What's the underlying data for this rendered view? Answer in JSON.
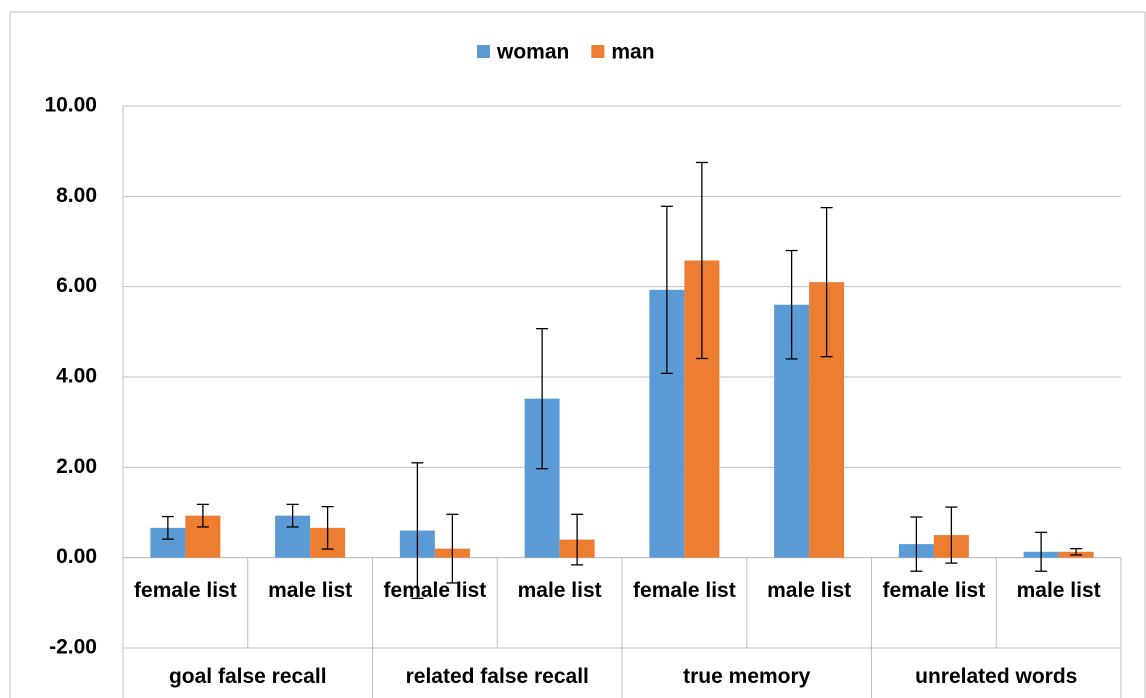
{
  "chart_data": {
    "type": "bar",
    "categories": [
      "female list",
      "male list",
      "female list",
      "male list",
      "female list",
      "male list",
      "female list",
      "male list"
    ],
    "groups": [
      "goal false recall",
      "related false recall",
      "true memory",
      "unrelated words"
    ],
    "series": [
      {
        "name": "woman",
        "color": "#5b9bd5",
        "values": [
          0.66,
          0.93,
          0.6,
          3.52,
          5.93,
          5.6,
          0.3,
          0.13
        ],
        "errors": [
          0.25,
          0.25,
          1.5,
          1.55,
          1.85,
          1.2,
          0.6,
          0.43
        ]
      },
      {
        "name": "man",
        "color": "#ed7d31",
        "values": [
          0.93,
          0.66,
          0.2,
          0.4,
          6.58,
          6.1,
          0.5,
          0.13
        ],
        "errors": [
          0.25,
          0.47,
          0.76,
          0.56,
          2.17,
          1.65,
          0.62,
          0.07
        ]
      }
    ],
    "ylim": [
      -2,
      10
    ],
    "yticks": [
      {
        "value": -2,
        "label": "-2.00"
      },
      {
        "value": 0,
        "label": "0.00"
      },
      {
        "value": 2,
        "label": "2.00"
      },
      {
        "value": 4,
        "label": "4.00"
      },
      {
        "value": 6,
        "label": "6.00"
      },
      {
        "value": 8,
        "label": "8.00"
      },
      {
        "value": 10,
        "label": "10.00"
      }
    ],
    "grid": true,
    "legend": "top"
  }
}
